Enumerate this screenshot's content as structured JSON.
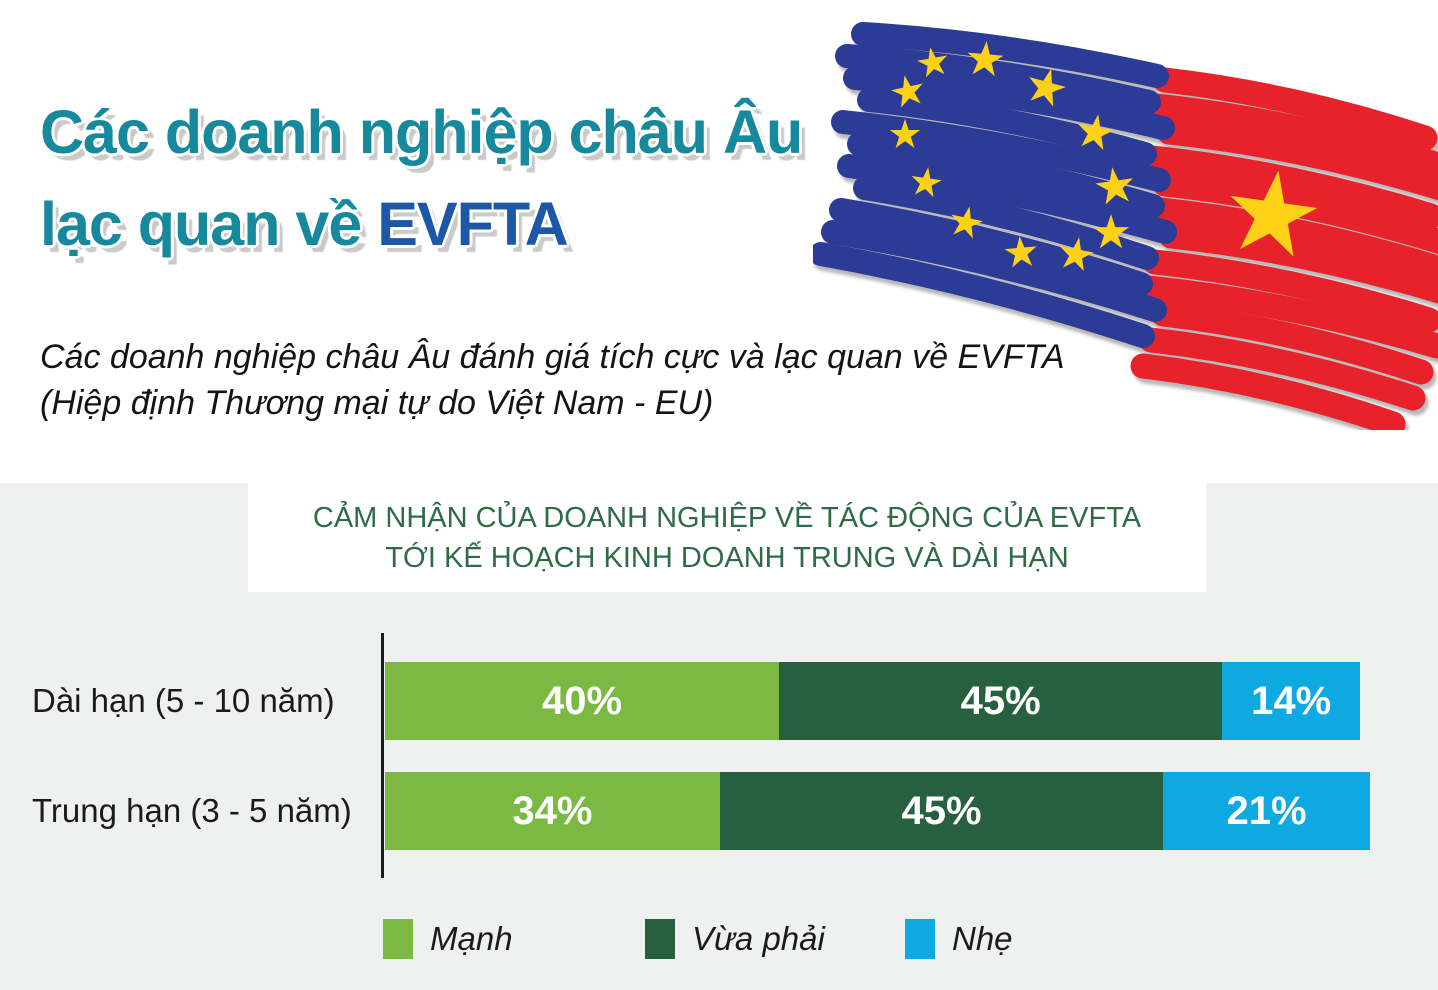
{
  "header": {
    "title_line1": "Các doanh nghiệp châu Âu",
    "title_line2_prefix": "lạc quan về ",
    "title_line2_highlight": "EVFTA",
    "subtitle_line1": "Các doanh nghiệp châu Âu đánh giá tích cực và lạc quan về EVFTA",
    "subtitle_line2": "(Hiệp định Thương mại tự do Việt Nam - EU)"
  },
  "colors": {
    "title_teal": "#17899D",
    "title_blue": "#1D57A8",
    "chart_title_green": "#2E6B46",
    "band_gray": "#EFF0F0",
    "eu_flag_blue": "#2B3B96",
    "vn_flag_red": "#E8222A",
    "star_yellow": "#FCD116"
  },
  "illustration": {
    "name": "eu-vietnam-flags",
    "description": "hand-drawn marker strokes forming EU flag and Vietnam flag"
  },
  "chart_data": {
    "type": "bar",
    "orientation": "horizontal-stacked",
    "title_line1": "CẢM NHẬN CỦA DOANH NGHIỆP VỀ TÁC ĐỘNG CỦA EVFTA",
    "title_line2": "TỚI KẾ HOẠCH KINH DOANH TRUNG VÀ DÀI HẠN",
    "categories": [
      "Dài hạn (5 - 10 năm)",
      "Trung hạn (3 - 5 năm)"
    ],
    "series": [
      {
        "name": "Mạnh",
        "color": "#7CB943",
        "values": [
          40,
          34
        ]
      },
      {
        "name": "Vừa phải",
        "color": "#27603E",
        "values": [
          45,
          45
        ]
      },
      {
        "name": "Nhẹ",
        "color": "#0FA9E1",
        "values": [
          14,
          21
        ]
      }
    ],
    "value_suffix": "%",
    "xlim": [
      0,
      100
    ],
    "grid": false,
    "legend_position": "bottom"
  }
}
